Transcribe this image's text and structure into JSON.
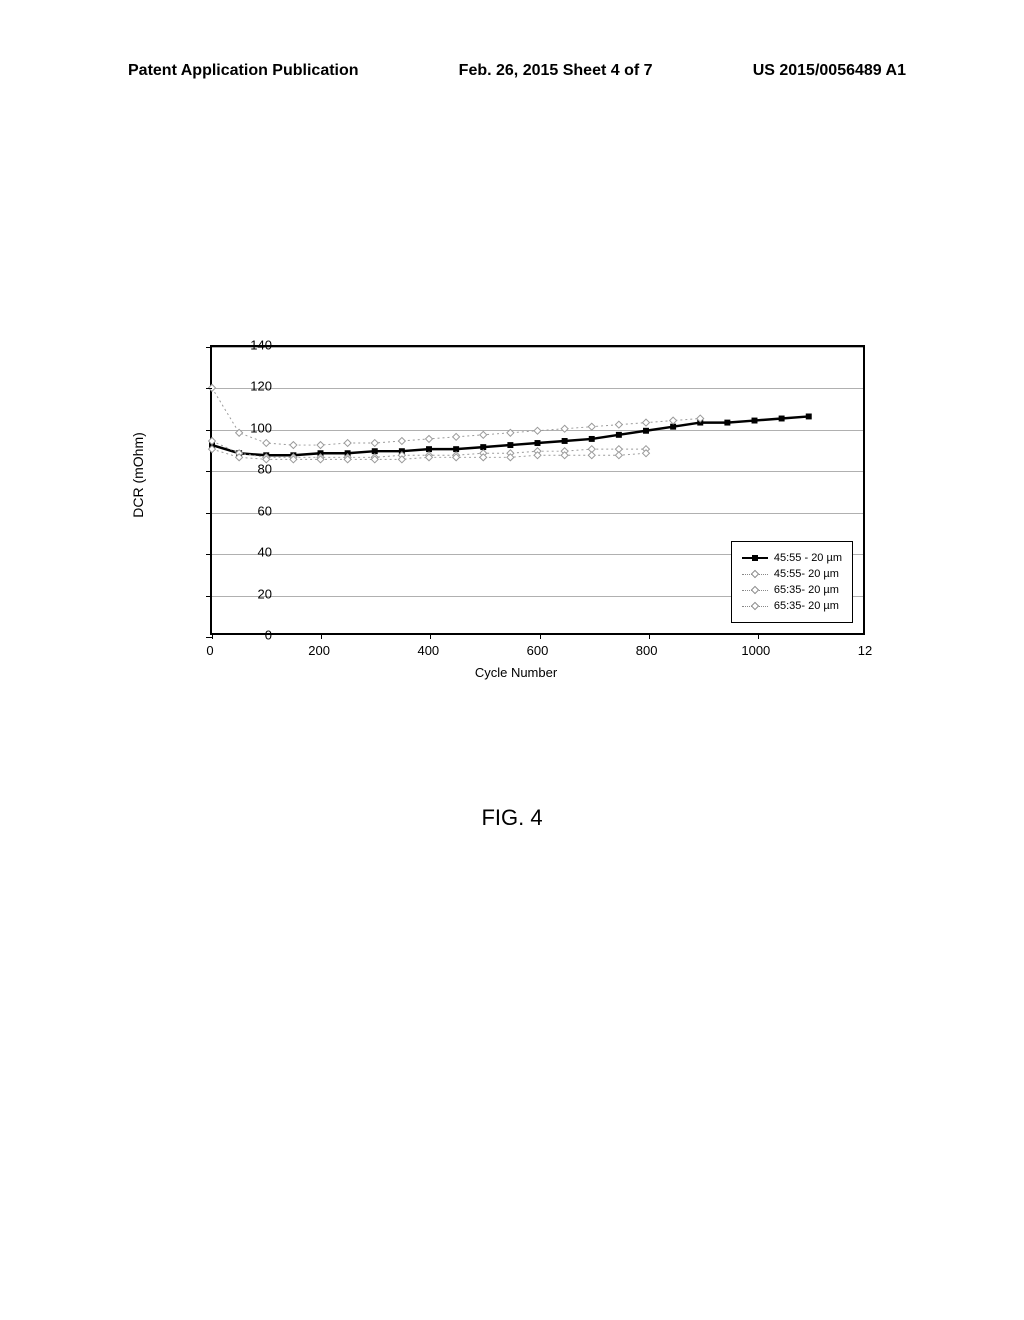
{
  "header": {
    "left": "Patent Application Publication",
    "center": "Feb. 26, 2015  Sheet 4 of 7",
    "right": "US 2015/0056489 A1"
  },
  "figure_caption": "FIG. 4",
  "chart": {
    "type": "line",
    "xlabel": "Cycle Number",
    "ylabel": "DCR (mOhm)",
    "xlim": [
      0,
      1200
    ],
    "ylim": [
      0,
      140
    ],
    "x_ticks": [
      0,
      200,
      400,
      600,
      800,
      1000
    ],
    "x_tick_extra_label": "12",
    "y_ticks": [
      0,
      20,
      40,
      60,
      80,
      100,
      120,
      140
    ],
    "grid_y": [
      20,
      40,
      60,
      80,
      100,
      120,
      140
    ],
    "grid_color": "#b0b0b0",
    "background_color": "#ffffff",
    "label_fontsize": 13,
    "series": [
      {
        "label": "45:55 - 20 µm",
        "style": "solid",
        "color": "#000000",
        "marker": "square",
        "marker_fill": "#000000",
        "line_width": 2.5,
        "x": [
          0,
          50,
          100,
          150,
          200,
          250,
          300,
          350,
          400,
          450,
          500,
          550,
          600,
          650,
          700,
          750,
          800,
          850,
          900,
          950,
          1000,
          1050,
          1100
        ],
        "y": [
          92,
          88,
          87,
          87,
          88,
          88,
          89,
          89,
          90,
          90,
          91,
          92,
          93,
          94,
          95,
          97,
          99,
          101,
          103,
          103,
          104,
          105,
          106
        ]
      },
      {
        "label": "45:55- 20 µm",
        "style": "dotted",
        "color": "#9a9a9a",
        "marker": "diamond",
        "marker_fill": "#ffffff",
        "line_width": 1,
        "x": [
          0,
          50,
          100,
          150,
          200,
          250,
          300,
          350,
          400,
          450,
          500,
          550,
          600,
          650,
          700,
          750,
          800,
          850,
          900
        ],
        "y": [
          120,
          98,
          93,
          92,
          92,
          93,
          93,
          94,
          95,
          96,
          97,
          98,
          99,
          100,
          101,
          102,
          103,
          104,
          105
        ]
      },
      {
        "label": "65:35- 20 µm",
        "style": "dotted",
        "color": "#9a9a9a",
        "marker": "diamond",
        "marker_fill": "#ffffff",
        "line_width": 1,
        "x": [
          0,
          50,
          100,
          150,
          200,
          250,
          300,
          350,
          400,
          450,
          500,
          550,
          600,
          650,
          700,
          750,
          800
        ],
        "y": [
          94,
          88,
          86,
          86,
          86,
          86,
          86,
          87,
          87,
          87,
          88,
          88,
          89,
          89,
          90,
          90,
          90
        ]
      },
      {
        "label": "65:35- 20 µm",
        "style": "dotted",
        "color": "#9a9a9a",
        "marker": "diamond",
        "marker_fill": "#ffffff",
        "line_width": 1,
        "x": [
          0,
          50,
          100,
          150,
          200,
          250,
          300,
          350,
          400,
          450,
          500,
          550,
          600,
          650,
          700,
          750,
          800
        ],
        "y": [
          90,
          86,
          85,
          85,
          85,
          85,
          85,
          85,
          86,
          86,
          86,
          86,
          87,
          87,
          87,
          87,
          88
        ]
      }
    ],
    "legend_items": [
      {
        "label": "45:55 - 20 µm",
        "style": "solid",
        "marker": "square"
      },
      {
        "label": "45:55- 20 µm",
        "style": "dotted",
        "marker": "diamond"
      },
      {
        "label": "65:35- 20 µm",
        "style": "dotted",
        "marker": "diamond"
      },
      {
        "label": "65:35- 20 µm",
        "style": "dotted",
        "marker": "diamond"
      }
    ]
  }
}
